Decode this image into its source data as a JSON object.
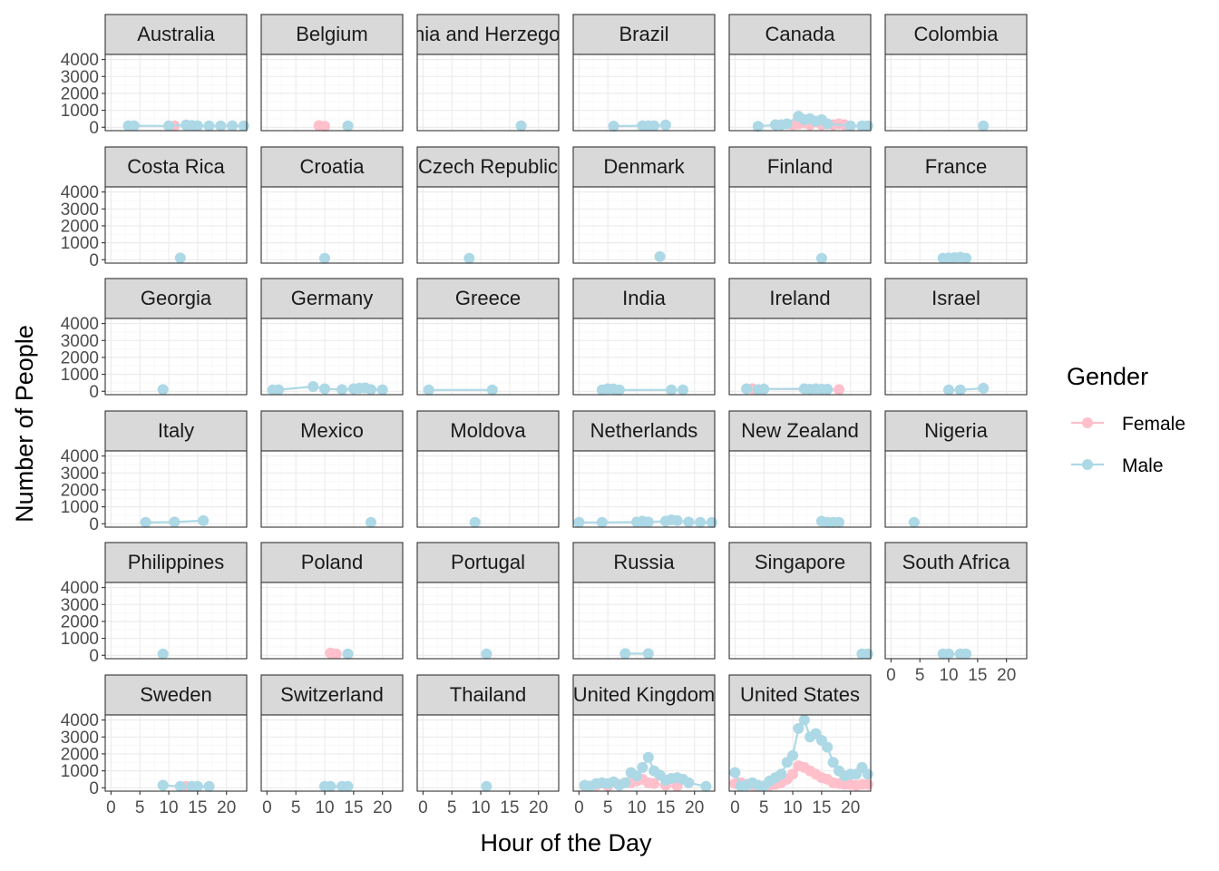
{
  "chart_data": {
    "type": "line",
    "facet_by": "Country",
    "facet_columns": 6,
    "xlabel": "Hour of the Day",
    "ylabel": "Number of People",
    "xlim": [
      -1,
      23.5
    ],
    "ylim": [
      -200,
      4300
    ],
    "x_ticks": [
      0,
      5,
      10,
      15,
      20
    ],
    "y_ticks": [
      0,
      1000,
      2000,
      3000,
      4000
    ],
    "x_tick_labels": [
      "0",
      "5",
      "10",
      "15",
      "20"
    ],
    "y_tick_labels": [
      "0",
      "1000",
      "2000",
      "3000",
      "4000"
    ],
    "grid": true,
    "legend": {
      "title": "Gender",
      "position": "right",
      "entries": [
        {
          "name": "Female",
          "color": "#ffc0cb"
        },
        {
          "name": "Male",
          "color": "#add8e6"
        }
      ]
    },
    "panels": [
      {
        "country": "Australia",
        "series": [
          {
            "name": "Female",
            "x": [
              11
            ],
            "y": [
              80
            ]
          },
          {
            "name": "Male",
            "x": [
              3,
              4,
              10,
              13,
              14,
              15,
              17,
              19,
              21,
              23
            ],
            "y": [
              90,
              90,
              80,
              140,
              110,
              90,
              80,
              80,
              90,
              80
            ]
          }
        ]
      },
      {
        "country": "Belgium",
        "series": [
          {
            "name": "Female",
            "x": [
              9,
              10
            ],
            "y": [
              100,
              60
            ]
          },
          {
            "name": "Male",
            "x": [
              14
            ],
            "y": [
              80
            ]
          }
        ]
      },
      {
        "country": "Bosnia and Herzegovina",
        "series": [
          {
            "name": "Female",
            "x": [],
            "y": []
          },
          {
            "name": "Male",
            "x": [
              17
            ],
            "y": [
              80
            ]
          }
        ]
      },
      {
        "country": "Brazil",
        "series": [
          {
            "name": "Female",
            "x": [],
            "y": []
          },
          {
            "name": "Male",
            "x": [
              6,
              11,
              12,
              13,
              15
            ],
            "y": [
              70,
              90,
              90,
              90,
              130
            ]
          }
        ]
      },
      {
        "country": "Canada",
        "series": [
          {
            "name": "Female",
            "x": [
              10,
              11,
              12,
              13,
              15,
              17,
              18,
              19
            ],
            "y": [
              150,
              200,
              250,
              150,
              150,
              150,
              200,
              150
            ]
          },
          {
            "name": "Male",
            "x": [
              4,
              7,
              8,
              9,
              11,
              12,
              13,
              14,
              15,
              16,
              20,
              22,
              23
            ],
            "y": [
              50,
              150,
              150,
              200,
              650,
              450,
              500,
              350,
              450,
              200,
              80,
              80,
              80
            ]
          }
        ]
      },
      {
        "country": "Colombia",
        "series": [
          {
            "name": "Female",
            "x": [],
            "y": []
          },
          {
            "name": "Male",
            "x": [
              16
            ],
            "y": [
              80
            ]
          }
        ]
      },
      {
        "country": "Costa Rica",
        "series": [
          {
            "name": "Female",
            "x": [],
            "y": []
          },
          {
            "name": "Male",
            "x": [
              12
            ],
            "y": [
              100
            ]
          }
        ]
      },
      {
        "country": "Croatia",
        "series": [
          {
            "name": "Female",
            "x": [],
            "y": []
          },
          {
            "name": "Male",
            "x": [
              10
            ],
            "y": [
              80
            ]
          }
        ]
      },
      {
        "country": "Czech Republic",
        "series": [
          {
            "name": "Female",
            "x": [],
            "y": []
          },
          {
            "name": "Male",
            "x": [
              8
            ],
            "y": [
              80
            ]
          }
        ]
      },
      {
        "country": "Denmark",
        "series": [
          {
            "name": "Female",
            "x": [],
            "y": []
          },
          {
            "name": "Male",
            "x": [
              14
            ],
            "y": [
              180
            ]
          }
        ]
      },
      {
        "country": "Finland",
        "series": [
          {
            "name": "Female",
            "x": [],
            "y": []
          },
          {
            "name": "Male",
            "x": [
              15
            ],
            "y": [
              80
            ]
          }
        ]
      },
      {
        "country": "France",
        "series": [
          {
            "name": "Female",
            "x": [],
            "y": []
          },
          {
            "name": "Male",
            "x": [
              9,
              10,
              11,
              12,
              13
            ],
            "y": [
              90,
              100,
              120,
              150,
              90
            ]
          }
        ]
      },
      {
        "country": "Georgia",
        "series": [
          {
            "name": "Female",
            "x": [],
            "y": []
          },
          {
            "name": "Male",
            "x": [
              9
            ],
            "y": [
              100
            ]
          }
        ]
      },
      {
        "country": "Germany",
        "series": [
          {
            "name": "Female",
            "x": [],
            "y": []
          },
          {
            "name": "Male",
            "x": [
              1,
              2,
              8,
              10,
              13,
              15,
              16,
              17,
              18,
              20
            ],
            "y": [
              80,
              90,
              280,
              150,
              100,
              150,
              180,
              200,
              100,
              90
            ]
          }
        ]
      },
      {
        "country": "Greece",
        "series": [
          {
            "name": "Female",
            "x": [],
            "y": []
          },
          {
            "name": "Male",
            "x": [
              1,
              12
            ],
            "y": [
              80,
              80
            ]
          }
        ]
      },
      {
        "country": "India",
        "series": [
          {
            "name": "Female",
            "x": [],
            "y": []
          },
          {
            "name": "Male",
            "x": [
              4,
              5,
              6,
              7,
              16,
              18
            ],
            "y": [
              80,
              150,
              130,
              80,
              80,
              80
            ]
          }
        ]
      },
      {
        "country": "Ireland",
        "series": [
          {
            "name": "Female",
            "x": [
              3,
              18
            ],
            "y": [
              150,
              100
            ]
          },
          {
            "name": "Male",
            "x": [
              2,
              4,
              5,
              12,
              13,
              14,
              15,
              16
            ],
            "y": [
              150,
              100,
              130,
              150,
              120,
              150,
              120,
              120
            ]
          }
        ]
      },
      {
        "country": "Israel",
        "series": [
          {
            "name": "Female",
            "x": [],
            "y": []
          },
          {
            "name": "Male",
            "x": [
              10,
              12,
              16
            ],
            "y": [
              80,
              80,
              180
            ]
          }
        ]
      },
      {
        "country": "Italy",
        "series": [
          {
            "name": "Female",
            "x": [],
            "y": []
          },
          {
            "name": "Male",
            "x": [
              6,
              11,
              16
            ],
            "y": [
              80,
              100,
              180
            ]
          }
        ]
      },
      {
        "country": "Mexico",
        "series": [
          {
            "name": "Female",
            "x": [],
            "y": []
          },
          {
            "name": "Male",
            "x": [
              18
            ],
            "y": [
              80
            ]
          }
        ]
      },
      {
        "country": "Moldova",
        "series": [
          {
            "name": "Female",
            "x": [],
            "y": []
          },
          {
            "name": "Male",
            "x": [
              9
            ],
            "y": [
              80
            ]
          }
        ]
      },
      {
        "country": "Netherlands",
        "series": [
          {
            "name": "Female",
            "x": [],
            "y": []
          },
          {
            "name": "Male",
            "x": [
              0,
              4,
              10,
              11,
              12,
              15,
              16,
              17,
              19,
              21,
              23
            ],
            "y": [
              80,
              80,
              100,
              150,
              100,
              150,
              230,
              180,
              100,
              80,
              80
            ]
          }
        ]
      },
      {
        "country": "New Zealand",
        "series": [
          {
            "name": "Female",
            "x": [],
            "y": []
          },
          {
            "name": "Male",
            "x": [
              15,
              16,
              17,
              18
            ],
            "y": [
              150,
              80,
              80,
              80
            ]
          }
        ]
      },
      {
        "country": "Nigeria",
        "series": [
          {
            "name": "Female",
            "x": [],
            "y": []
          },
          {
            "name": "Male",
            "x": [
              4
            ],
            "y": [
              80
            ]
          }
        ]
      },
      {
        "country": "Philippines",
        "series": [
          {
            "name": "Female",
            "x": [],
            "y": []
          },
          {
            "name": "Male",
            "x": [
              9
            ],
            "y": [
              80
            ]
          }
        ]
      },
      {
        "country": "Poland",
        "series": [
          {
            "name": "Female",
            "x": [
              11,
              12
            ],
            "y": [
              130,
              80
            ]
          },
          {
            "name": "Male",
            "x": [
              14
            ],
            "y": [
              80
            ]
          }
        ]
      },
      {
        "country": "Portugal",
        "series": [
          {
            "name": "Female",
            "x": [],
            "y": []
          },
          {
            "name": "Male",
            "x": [
              11
            ],
            "y": [
              80
            ]
          }
        ]
      },
      {
        "country": "Russia",
        "series": [
          {
            "name": "Female",
            "x": [],
            "y": []
          },
          {
            "name": "Male",
            "x": [
              8,
              12
            ],
            "y": [
              100,
              100
            ]
          }
        ]
      },
      {
        "country": "Singapore",
        "series": [
          {
            "name": "Female",
            "x": [],
            "y": []
          },
          {
            "name": "Male",
            "x": [
              22,
              23
            ],
            "y": [
              80,
              80
            ]
          }
        ]
      },
      {
        "country": "South Africa",
        "series": [
          {
            "name": "Female",
            "x": [],
            "y": []
          },
          {
            "name": "Male",
            "x": [
              9,
              10,
              12,
              13
            ],
            "y": [
              80,
              80,
              80,
              80
            ]
          }
        ]
      },
      {
        "country": "Sweden",
        "series": [
          {
            "name": "Female",
            "x": [
              13
            ],
            "y": [
              80
            ]
          },
          {
            "name": "Male",
            "x": [
              9,
              12,
              14,
              15,
              17
            ],
            "y": [
              150,
              80,
              80,
              80,
              80
            ]
          }
        ]
      },
      {
        "country": "Switzerland",
        "series": [
          {
            "name": "Female",
            "x": [],
            "y": []
          },
          {
            "name": "Male",
            "x": [
              10,
              11,
              13,
              14
            ],
            "y": [
              80,
              80,
              80,
              80
            ]
          }
        ]
      },
      {
        "country": "Thailand",
        "series": [
          {
            "name": "Female",
            "x": [],
            "y": []
          },
          {
            "name": "Male",
            "x": [
              11
            ],
            "y": [
              80
            ]
          }
        ]
      },
      {
        "country": "United Kingdom",
        "series": [
          {
            "name": "Female",
            "x": [
              1,
              3,
              5,
              7,
              9,
              10,
              11,
              12,
              13,
              15,
              17
            ],
            "y": [
              100,
              150,
              100,
              200,
              300,
              400,
              500,
              300,
              250,
              150,
              100
            ]
          },
          {
            "name": "Male",
            "x": [
              1,
              2,
              3,
              4,
              5,
              6,
              7,
              8,
              9,
              10,
              11,
              12,
              13,
              14,
              15,
              16,
              17,
              18,
              19,
              22
            ],
            "y": [
              150,
              100,
              250,
              300,
              250,
              350,
              150,
              300,
              900,
              700,
              1200,
              1800,
              1000,
              750,
              450,
              550,
              600,
              500,
              300,
              80
            ]
          }
        ]
      },
      {
        "country": "United States",
        "series": [
          {
            "name": "Female",
            "x": [
              0,
              1,
              2,
              3,
              4,
              5,
              6,
              7,
              8,
              9,
              10,
              11,
              12,
              13,
              14,
              15,
              16,
              17,
              18,
              19,
              20,
              21,
              22,
              23
            ],
            "y": [
              250,
              300,
              200,
              150,
              100,
              100,
              150,
              200,
              300,
              500,
              800,
              1300,
              1200,
              1000,
              800,
              600,
              500,
              300,
              250,
              200,
              200,
              150,
              200,
              200
            ]
          },
          {
            "name": "Male",
            "x": [
              0,
              1,
              2,
              3,
              4,
              5,
              6,
              7,
              8,
              9,
              10,
              11,
              12,
              13,
              14,
              15,
              16,
              17,
              18,
              19,
              20,
              21,
              22,
              23
            ],
            "y": [
              900,
              100,
              150,
              300,
              150,
              100,
              400,
              600,
              800,
              1500,
              1900,
              3500,
              4000,
              3000,
              3200,
              2800,
              2400,
              1500,
              1000,
              700,
              800,
              800,
              1200,
              800
            ]
          }
        ]
      }
    ]
  }
}
